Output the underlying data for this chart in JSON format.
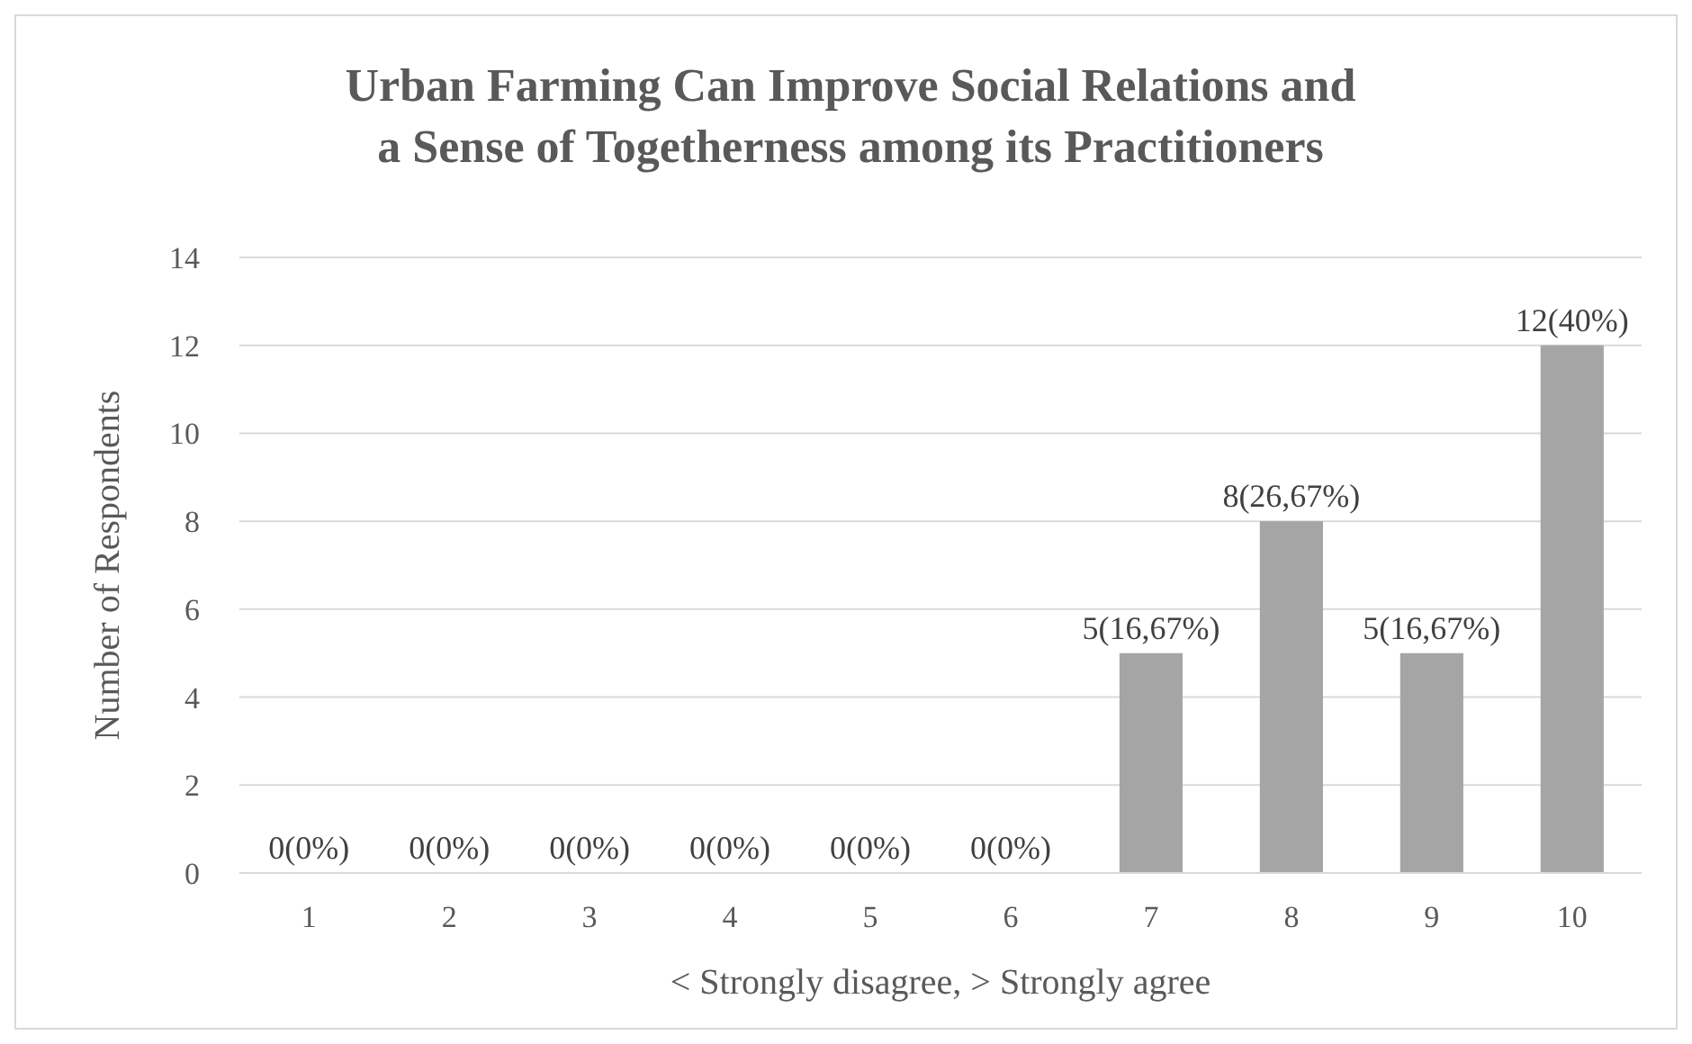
{
  "chart_data": {
    "type": "bar",
    "title": "Urban Farming Can Improve Social Relations and a Sense of Togetherness among its Practitioners",
    "xlabel": "< Strongly disagree, > Strongly agree",
    "ylabel": "Number of Respondents",
    "categories": [
      "1",
      "2",
      "3",
      "4",
      "5",
      "6",
      "7",
      "8",
      "9",
      "10"
    ],
    "values": [
      0,
      0,
      0,
      0,
      0,
      0,
      5,
      8,
      5,
      12
    ],
    "value_labels": [
      "0(0%)",
      "0(0%)",
      "0(0%)",
      "0(0%)",
      "0(0%)",
      "0(0%)",
      "5(16,67%)",
      "8(26,67%)",
      "5(16,67%)",
      "12(40%)"
    ],
    "color": "#a5a5a5",
    "ylim": [
      0,
      14
    ],
    "yticks": [
      0,
      2,
      4,
      6,
      8,
      10,
      12,
      14
    ],
    "grid": "y"
  }
}
